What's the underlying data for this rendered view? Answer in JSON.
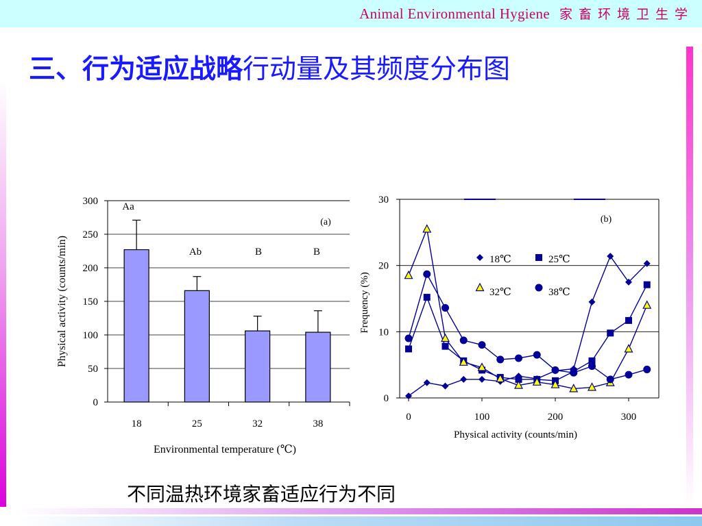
{
  "header": {
    "en": "Animal  Environmental  Hygiene",
    "cn": "家畜环境卫生学"
  },
  "title": {
    "bold": "三、行为适应战略",
    "rest": "行动量及其频度分布图"
  },
  "caption": "不同温热环境家畜适应行为不同",
  "colors": {
    "title": "#1a1aff",
    "header_text": "#cc0066",
    "bar_fill": "#9999ff",
    "line": "#000099",
    "marker_yellow": "#ffff00"
  },
  "chart_data": [
    {
      "type": "bar",
      "panel_label": "(a)",
      "categories": [
        "18",
        "25",
        "32",
        "38"
      ],
      "values": [
        227,
        166,
        106,
        104
      ],
      "error_upper": [
        271,
        187,
        128,
        136
      ],
      "letters": [
        "Aa",
        "Ab",
        "B",
        "B"
      ],
      "xlabel": "Environmental temperature (℃)",
      "ylabel": "Physical activity (counts/min)",
      "ylim": [
        0,
        300
      ],
      "yticks": [
        0,
        50,
        100,
        150,
        200,
        250,
        300
      ],
      "grid": "horizontal"
    },
    {
      "type": "line",
      "panel_label": "(b)",
      "xlabel": "Physical activity (counts/min)",
      "ylabel": "Frequency (%)",
      "xlim": [
        0,
        340
      ],
      "ylim": [
        0,
        30
      ],
      "xticks": [
        0,
        100,
        200,
        300
      ],
      "yticks": [
        0,
        10,
        20,
        30
      ],
      "grid": "horizontal",
      "legend": "inside-center",
      "x": [
        0,
        25,
        50,
        75,
        100,
        125,
        150,
        175,
        200,
        225,
        250,
        275,
        300,
        325
      ],
      "series": [
        {
          "name": "18℃",
          "marker": "diamond",
          "values": [
            0.3,
            2.3,
            1.8,
            2.8,
            2.8,
            2.5,
            3.3,
            2.9,
            4.1,
            4.4,
            14.5,
            21.4,
            17.5,
            20.3
          ]
        },
        {
          "name": "25℃",
          "marker": "square",
          "values": [
            7.4,
            15.2,
            7.8,
            5.6,
            4.2,
            3.1,
            2.8,
            2.8,
            2.6,
            4.0,
            5.6,
            9.8,
            11.7,
            17.1
          ]
        },
        {
          "name": "32℃",
          "marker": "triangle",
          "values": [
            18.5,
            25.5,
            9.0,
            5.4,
            4.6,
            2.9,
            1.9,
            2.4,
            2.0,
            1.4,
            1.6,
            2.3,
            7.4,
            14.0
          ]
        },
        {
          "name": "38℃",
          "marker": "circle",
          "values": [
            9.0,
            18.7,
            13.6,
            8.7,
            8.0,
            5.8,
            6.0,
            6.5,
            4.2,
            3.8,
            4.8,
            2.8,
            3.5,
            4.3
          ]
        }
      ]
    }
  ]
}
